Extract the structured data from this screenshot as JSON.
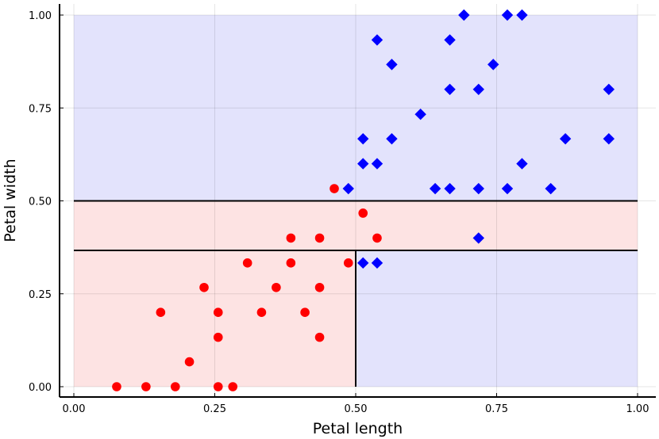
{
  "chart_data": {
    "type": "scatter",
    "xlabel": "Petal length",
    "ylabel": "Petal width",
    "xlim": [
      -0.02,
      1.03
    ],
    "ylim": [
      -0.03,
      1.03
    ],
    "xticks": [
      0.0,
      0.25,
      0.5,
      0.75,
      1.0
    ],
    "xtick_labels": [
      "0.00",
      "0.25",
      "0.50",
      "0.75",
      "1.00"
    ],
    "yticks": [
      0.0,
      0.25,
      0.5,
      0.75,
      1.0
    ],
    "ytick_labels": [
      "0.00",
      "0.25",
      "0.50",
      "0.75",
      "1.00"
    ],
    "grid": true,
    "legend": "none",
    "regions": [
      {
        "x": [
          0.0,
          1.0
        ],
        "y": [
          0.5,
          1.0
        ],
        "color": "#e3e3fc"
      },
      {
        "x": [
          0.5,
          1.0
        ],
        "y": [
          0.0,
          0.3667
        ],
        "color": "#e3e3fc"
      },
      {
        "x": [
          0.0,
          1.0
        ],
        "y": [
          0.3667,
          0.5
        ],
        "color": "#fde3e3"
      },
      {
        "x": [
          0.0,
          0.5
        ],
        "y": [
          0.0,
          0.3667
        ],
        "color": "#fde3e3"
      }
    ],
    "boundaries": [
      {
        "x": [
          0.0,
          1.0
        ],
        "y": [
          0.5,
          0.5
        ]
      },
      {
        "x": [
          0.0,
          1.0
        ],
        "y": [
          0.3667,
          0.3667
        ]
      },
      {
        "x": [
          0.5,
          0.5
        ],
        "y": [
          0.0,
          0.3667
        ]
      }
    ],
    "series": [
      {
        "marker": "circle",
        "color": "#ff0000",
        "points": [
          [
            0.076,
            0.0
          ],
          [
            0.128,
            0.0
          ],
          [
            0.18,
            0.0
          ],
          [
            0.256,
            0.0
          ],
          [
            0.282,
            0.0
          ],
          [
            0.205,
            0.067
          ],
          [
            0.256,
            0.133
          ],
          [
            0.436,
            0.133
          ],
          [
            0.154,
            0.2
          ],
          [
            0.256,
            0.2
          ],
          [
            0.333,
            0.2
          ],
          [
            0.41,
            0.2
          ],
          [
            0.231,
            0.267
          ],
          [
            0.359,
            0.267
          ],
          [
            0.436,
            0.267
          ],
          [
            0.308,
            0.333
          ],
          [
            0.385,
            0.333
          ],
          [
            0.487,
            0.333
          ],
          [
            0.385,
            0.4
          ],
          [
            0.436,
            0.4
          ],
          [
            0.538,
            0.4
          ],
          [
            0.513,
            0.467
          ],
          [
            0.462,
            0.533
          ]
        ]
      },
      {
        "marker": "diamond",
        "color": "#0000ff",
        "points": [
          [
            0.513,
            0.333
          ],
          [
            0.538,
            0.333
          ],
          [
            0.718,
            0.4
          ],
          [
            0.487,
            0.533
          ],
          [
            0.641,
            0.533
          ],
          [
            0.667,
            0.533
          ],
          [
            0.718,
            0.533
          ],
          [
            0.769,
            0.533
          ],
          [
            0.846,
            0.533
          ],
          [
            0.513,
            0.6
          ],
          [
            0.538,
            0.6
          ],
          [
            0.795,
            0.6
          ],
          [
            0.513,
            0.667
          ],
          [
            0.564,
            0.667
          ],
          [
            0.872,
            0.667
          ],
          [
            0.949,
            0.667
          ],
          [
            0.615,
            0.733
          ],
          [
            0.667,
            0.8
          ],
          [
            0.718,
            0.8
          ],
          [
            0.949,
            0.8
          ],
          [
            0.564,
            0.867
          ],
          [
            0.744,
            0.867
          ],
          [
            0.538,
            0.933
          ],
          [
            0.667,
            0.933
          ],
          [
            0.692,
            1.0
          ],
          [
            0.769,
            1.0
          ],
          [
            0.795,
            1.0
          ]
        ]
      }
    ]
  }
}
